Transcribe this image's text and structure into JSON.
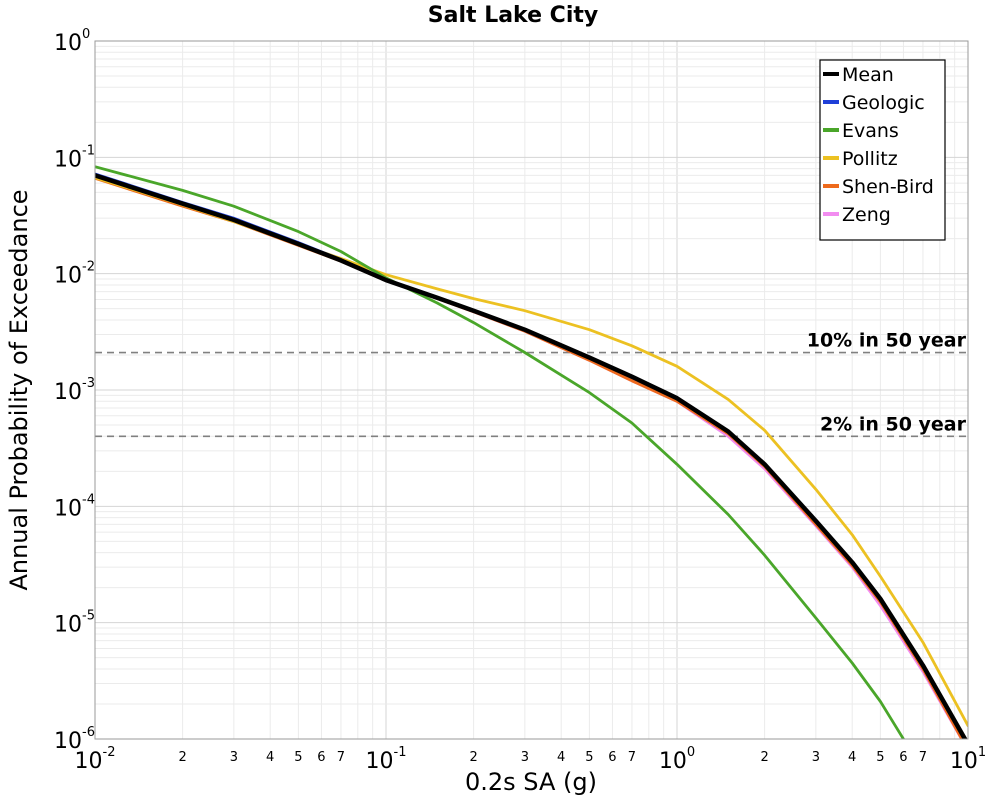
{
  "chart_data": {
    "type": "line",
    "title": "Salt Lake City",
    "xlabel": "0.2s SA (g)",
    "ylabel": "Annual Probability of Exceedance",
    "x_scale": "log",
    "y_scale": "log",
    "xlim": [
      0.01,
      10
    ],
    "ylim": [
      1e-06,
      1
    ],
    "grid": true,
    "legend_position": "top-right",
    "x_major_ticks": [
      {
        "base": "10",
        "exp": "-2",
        "value": 0.01
      },
      {
        "base": "10",
        "exp": "-1",
        "value": 0.1
      },
      {
        "base": "10",
        "exp": "0",
        "value": 1
      },
      {
        "base": "10",
        "exp": "1",
        "value": 10
      }
    ],
    "x_minor_tick_labels": [
      "2",
      "3",
      "4",
      "5",
      "6",
      "7"
    ],
    "y_major_ticks": [
      {
        "base": "10",
        "exp": "0",
        "value": 1
      },
      {
        "base": "10",
        "exp": "-1",
        "value": 0.1
      },
      {
        "base": "10",
        "exp": "-2",
        "value": 0.01
      },
      {
        "base": "10",
        "exp": "-3",
        "value": 0.001
      },
      {
        "base": "10",
        "exp": "-4",
        "value": 0.0001
      },
      {
        "base": "10",
        "exp": "-5",
        "value": 1e-05
      },
      {
        "base": "10",
        "exp": "-6",
        "value": 1e-06
      }
    ],
    "reference_lines": [
      {
        "label": "10% in 50 year",
        "y": 0.0021,
        "color": "#808080"
      },
      {
        "label": "2% in 50 year",
        "y": 0.0004,
        "color": "#808080"
      }
    ],
    "series": [
      {
        "name": "Mean",
        "color": "#000000",
        "x": [
          0.01,
          0.02,
          0.03,
          0.05,
          0.07,
          0.1,
          0.15,
          0.2,
          0.3,
          0.5,
          0.7,
          1.0,
          1.5,
          2.0,
          3.0,
          4.0,
          5.0,
          7.0,
          10.0
        ],
        "y": [
          0.07,
          0.04,
          0.029,
          0.018,
          0.013,
          0.0088,
          0.0062,
          0.0048,
          0.0033,
          0.0019,
          0.0013,
          0.00085,
          0.00044,
          0.00023,
          7.5e-05,
          3.3e-05,
          1.6e-05,
          4.3e-06,
          9e-07
        ]
      },
      {
        "name": "Geologic",
        "color": "#1f3fd8",
        "x": [
          0.01,
          0.02,
          0.03,
          0.05,
          0.07,
          0.1,
          0.15,
          0.2,
          0.3,
          0.5,
          0.7,
          1.0,
          1.5,
          2.0,
          3.0,
          4.0,
          5.0,
          7.0,
          10.0
        ],
        "y": [
          0.072,
          0.041,
          0.03,
          0.0185,
          0.0132,
          0.0089,
          0.0062,
          0.0048,
          0.0033,
          0.0019,
          0.0013,
          0.00085,
          0.00044,
          0.00023,
          7.5e-05,
          3.3e-05,
          1.6e-05,
          4.3e-06,
          9e-07
        ]
      },
      {
        "name": "Evans",
        "color": "#4aa62a",
        "x": [
          0.01,
          0.02,
          0.03,
          0.05,
          0.07,
          0.1,
          0.15,
          0.2,
          0.3,
          0.5,
          0.7,
          1.0,
          1.5,
          2.0,
          3.0,
          4.0,
          5.0,
          6.8
        ],
        "y": [
          0.083,
          0.052,
          0.038,
          0.023,
          0.0155,
          0.0092,
          0.0056,
          0.0038,
          0.0021,
          0.00095,
          0.00052,
          0.00023,
          8.5e-05,
          3.8e-05,
          1.1e-05,
          4.5e-06,
          2.1e-06,
          6e-07
        ]
      },
      {
        "name": "Pollitz",
        "color": "#ecc122",
        "x": [
          0.01,
          0.02,
          0.03,
          0.05,
          0.07,
          0.1,
          0.15,
          0.2,
          0.3,
          0.5,
          0.7,
          1.0,
          1.5,
          2.0,
          3.0,
          4.0,
          5.0,
          7.0,
          10.0
        ],
        "y": [
          0.067,
          0.039,
          0.028,
          0.018,
          0.0135,
          0.0098,
          0.0074,
          0.0061,
          0.0048,
          0.0033,
          0.0024,
          0.0016,
          0.00083,
          0.00045,
          0.00014,
          5.7e-05,
          2.5e-05,
          6.8e-06,
          1.3e-06
        ]
      },
      {
        "name": "Shen-Bird",
        "color": "#ee6a1c",
        "x": [
          0.01,
          0.02,
          0.03,
          0.05,
          0.07,
          0.1,
          0.15,
          0.2,
          0.3,
          0.5,
          0.7,
          1.0,
          1.5,
          2.0,
          3.0,
          4.0,
          5.0,
          7.0,
          10.0
        ],
        "y": [
          0.066,
          0.038,
          0.028,
          0.0175,
          0.0128,
          0.0087,
          0.0061,
          0.0047,
          0.0032,
          0.0018,
          0.0012,
          0.0008,
          0.00042,
          0.00022,
          7e-05,
          3.1e-05,
          1.5e-05,
          4e-06,
          8e-07
        ]
      },
      {
        "name": "Zeng",
        "color": "#f28cf0",
        "x": [
          0.01,
          0.02,
          0.03,
          0.05,
          0.07,
          0.1,
          0.15,
          0.2,
          0.3,
          0.5,
          0.7,
          1.0,
          1.5,
          2.0,
          3.0,
          4.0,
          5.0,
          7.0,
          10.0
        ],
        "y": [
          0.069,
          0.039,
          0.0285,
          0.0178,
          0.0129,
          0.0087,
          0.0061,
          0.0047,
          0.0032,
          0.0018,
          0.0012,
          0.0008,
          0.0004,
          0.00021,
          6.8e-05,
          3e-05,
          1.4e-05,
          3.8e-06,
          8e-07
        ]
      }
    ]
  }
}
